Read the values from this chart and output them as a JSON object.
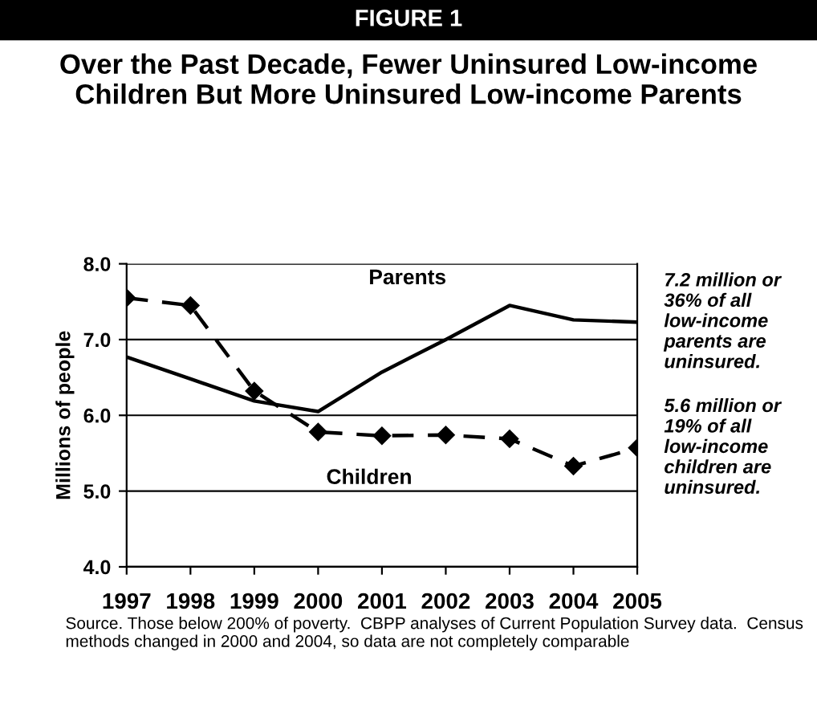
{
  "chart_data": {
    "type": "line",
    "subtitle": "FIGURE 1",
    "title": "Over the Past Decade, Fewer Uninsured Low-income Children But More Uninsured Low-income Parents",
    "ylabel": "Millions of people",
    "categories": [
      "1997",
      "1998",
      "1999",
      "2000",
      "2001",
      "2002",
      "2003",
      "2004",
      "2005"
    ],
    "series": [
      {
        "name": "Parents",
        "color": "#000000",
        "marker": "none",
        "line_style": "solid",
        "values": [
          6.77,
          6.48,
          6.19,
          6.05,
          6.57,
          7.0,
          7.45,
          7.26,
          7.23
        ]
      },
      {
        "name": "Children",
        "color": "#000000",
        "marker": "diamond",
        "line_style": "dashed",
        "values": [
          7.55,
          7.45,
          6.32,
          5.78,
          5.73,
          5.74,
          5.69,
          5.33,
          5.57
        ]
      }
    ],
    "ylim": [
      4.0,
      8.0
    ],
    "yticks": [
      {
        "value": 4,
        "label": "4.0"
      },
      {
        "value": 5,
        "label": "5.0"
      },
      {
        "value": 6,
        "label": "6.0"
      },
      {
        "value": 7,
        "label": "7.0"
      },
      {
        "value": 8,
        "label": "8.0"
      }
    ],
    "grid": "y",
    "legend": false,
    "annotations": [
      {
        "text": "7.2 million or 36% of all low-income parents are uninsured.",
        "x": "2005",
        "y": 7.23
      },
      {
        "text": "5.6 million or 19% of all low-income children are uninsured.",
        "x": "2005",
        "y": 5.57
      },
      "Source. Those below 200% of poverty.  CBPP analyses of Current Population Survey data.  Census methods changed in 2000 and 2004, so data are not completely comparable"
    ]
  }
}
